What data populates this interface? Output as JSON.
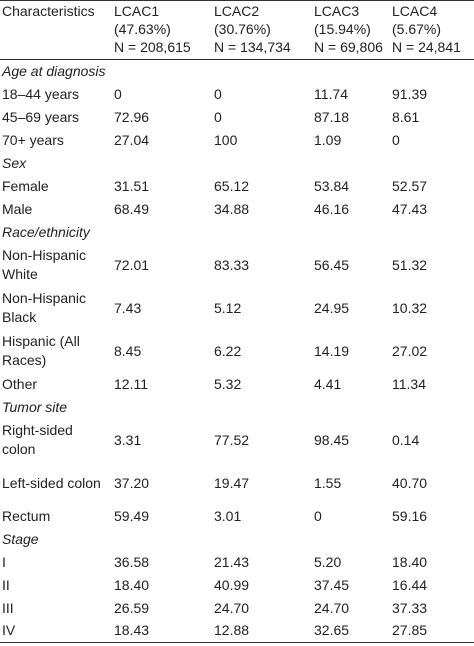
{
  "table": {
    "header": [
      {
        "name": "Characteristics"
      },
      {
        "name": "LCAC1",
        "share": "(47.63%)",
        "n": "N = 208,615"
      },
      {
        "name": "LCAC2",
        "share": "(30.76%)",
        "n": "N = 134,734"
      },
      {
        "name": "LCAC3",
        "share": "(15.94%)",
        "n": "N = 69,806"
      },
      {
        "name": "LCAC4",
        "share": "(5.67%)",
        "n": "N = 24,841"
      }
    ],
    "sections": [
      {
        "title": "Age at diagnosis",
        "rows": [
          {
            "label": "18–44 years",
            "values": [
              "0",
              "0",
              "11.74",
              "91.39"
            ]
          },
          {
            "label": "45–69 years",
            "values": [
              "72.96",
              "0",
              "87.18",
              "8.61"
            ]
          },
          {
            "label": "70+ years",
            "values": [
              "27.04",
              "100",
              "1.09",
              "0"
            ]
          }
        ]
      },
      {
        "title": "Sex",
        "rows": [
          {
            "label": "Female",
            "values": [
              "31.51",
              "65.12",
              "53.84",
              "52.57"
            ]
          },
          {
            "label": "Male",
            "values": [
              "68.49",
              "34.88",
              "46.16",
              "47.43"
            ]
          }
        ]
      },
      {
        "title": "Race/ethnicity",
        "rows": [
          {
            "label": "Non-Hispanic White",
            "values": [
              "72.01",
              "83.33",
              "56.45",
              "51.32"
            ]
          },
          {
            "label": "Non-Hispanic Black",
            "values": [
              "7.43",
              "5.12",
              "24.95",
              "10.32"
            ]
          },
          {
            "label": "Hispanic (All Races)",
            "values": [
              "8.45",
              "6.22",
              "14.19",
              "27.02"
            ]
          },
          {
            "label": "Other",
            "values": [
              "12.11",
              "5.32",
              "4.41",
              "11.34"
            ]
          }
        ]
      },
      {
        "title": "Tumor site",
        "rows": [
          {
            "label": "Right-sided colon",
            "values": [
              "3.31",
              "77.52",
              "98.45",
              "0.14"
            ]
          },
          {
            "label": "Left-sided colon",
            "values": [
              "37.20",
              "19.47",
              "1.55",
              "40.70"
            ]
          },
          {
            "label": "Rectum",
            "values": [
              "59.49",
              "3.01",
              "0",
              "59.16"
            ]
          }
        ]
      },
      {
        "title": "Stage",
        "rows": [
          {
            "label": "I",
            "values": [
              "36.58",
              "21.43",
              "5.20",
              "18.40"
            ]
          },
          {
            "label": "II",
            "values": [
              "18.40",
              "40.99",
              "37.45",
              "16.44"
            ]
          },
          {
            "label": "III",
            "values": [
              "26.59",
              "24.70",
              "24.70",
              "37.33"
            ]
          },
          {
            "label": "IV",
            "values": [
              "18.43",
              "12.88",
              "32.65",
              "27.85"
            ]
          }
        ]
      }
    ]
  }
}
